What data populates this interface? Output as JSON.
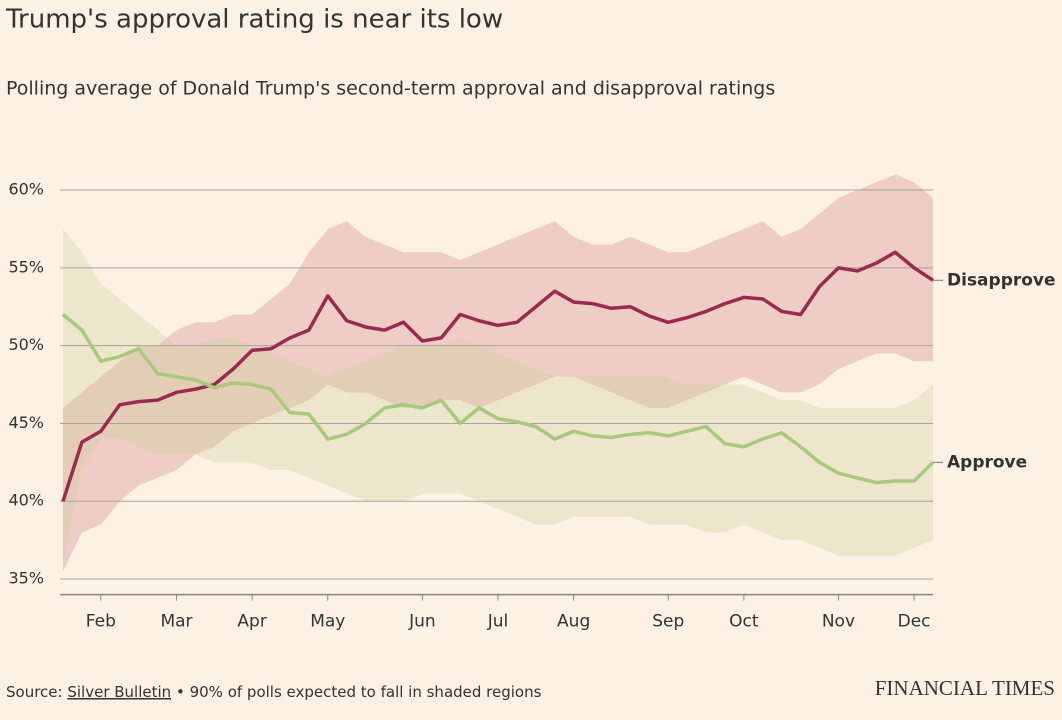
{
  "chart_data": {
    "type": "line",
    "title": "Trump's approval rating is near its low",
    "subtitle": "Polling average of Donald Trump's second-term approval and disapproval ratings",
    "categories": [
      null,
      null,
      "Feb",
      null,
      null,
      null,
      "Mar",
      null,
      null,
      null,
      "Apr",
      null,
      null,
      null,
      "May",
      null,
      null,
      null,
      null,
      "Jun",
      null,
      null,
      null,
      "Jul",
      null,
      null,
      null,
      "Aug",
      null,
      null,
      null,
      null,
      "Sep",
      null,
      null,
      null,
      "Oct",
      null,
      null,
      null,
      null,
      "Nov",
      null,
      null,
      null,
      "Dec",
      null
    ],
    "ylim": [
      34,
      61.5
    ],
    "yticks": [
      {
        "value": 35,
        "label": "35%"
      },
      {
        "value": 40,
        "label": "40%"
      },
      {
        "value": 45,
        "label": "45%"
      },
      {
        "value": 50,
        "label": "50%"
      },
      {
        "value": 55,
        "label": "55%"
      },
      {
        "value": 60,
        "label": "60%"
      }
    ],
    "grid": true,
    "series": [
      {
        "name": "Disapprove",
        "color": "#9a2a4e",
        "band_color": "rgba(204,110,120,0.28)",
        "values": [
          40,
          43.8,
          44.5,
          46.2,
          46.4,
          46.5,
          47.0,
          47.2,
          47.5,
          48.5,
          49.7,
          49.8,
          50.5,
          51.0,
          53.2,
          51.6,
          51.2,
          51.0,
          51.5,
          50.3,
          50.5,
          52.0,
          51.6,
          51.3,
          51.5,
          52.5,
          53.5,
          52.8,
          52.7,
          52.4,
          52.5,
          51.9,
          51.5,
          51.8,
          52.2,
          52.7,
          53.1,
          53.0,
          52.2,
          52.0,
          53.8,
          55.0,
          54.8,
          55.3,
          56.0,
          55.0,
          54.2
        ],
        "upper": [
          46,
          47,
          48,
          49,
          50,
          50,
          51,
          51.5,
          51.5,
          52,
          52,
          53,
          54,
          56,
          57.5,
          58,
          57,
          56.5,
          56,
          56,
          56,
          55.5,
          56,
          56.5,
          57,
          57.5,
          58,
          57,
          56.5,
          56.5,
          57,
          56.5,
          56,
          56,
          56.5,
          57,
          57.5,
          58,
          57,
          57.5,
          58.5,
          59.5,
          60,
          60.5,
          61,
          60.5,
          59.5
        ],
        "lower": [
          35.5,
          38,
          38.5,
          40,
          41,
          41.5,
          42,
          43,
          43.5,
          44.5,
          45,
          45.5,
          46,
          46.5,
          47.5,
          47,
          47,
          46.5,
          46,
          46,
          46.5,
          46.5,
          46,
          46.5,
          47,
          47.5,
          48,
          48,
          47.5,
          47,
          46.5,
          46,
          46,
          46.5,
          47,
          47.5,
          48,
          47.5,
          47,
          47,
          47.5,
          48.5,
          49,
          49.5,
          49.5,
          49,
          49
        ]
      },
      {
        "name": "Approve",
        "color": "#a7c97b",
        "band_color": "rgba(205,205,150,0.32)",
        "values": [
          52.0,
          51.0,
          49.0,
          49.3,
          49.8,
          48.2,
          48.0,
          47.8,
          47.3,
          47.6,
          47.5,
          47.2,
          45.7,
          45.6,
          44.0,
          44.3,
          45.0,
          46.0,
          46.2,
          46.0,
          46.5,
          45.0,
          46.0,
          45.3,
          45.1,
          44.8,
          44.0,
          44.5,
          44.2,
          44.1,
          44.3,
          44.4,
          44.2,
          44.5,
          44.8,
          43.7,
          43.5,
          44.0,
          44.4,
          43.5,
          42.5,
          41.8,
          41.5,
          41.2,
          41.3,
          41.3,
          42.5
        ],
        "upper": [
          57.5,
          56,
          54,
          53,
          52,
          51,
          50,
          50,
          50.5,
          50.5,
          50,
          49.5,
          49,
          48.5,
          48,
          48.5,
          49,
          49.5,
          50,
          50,
          50,
          50.5,
          50,
          49.5,
          49,
          48.5,
          48,
          48,
          48,
          48,
          48,
          48,
          48,
          47.5,
          47.5,
          47.5,
          47.5,
          47,
          46.5,
          46.5,
          46,
          46,
          46,
          46,
          46,
          46.5,
          47.5
        ],
        "lower": [
          36,
          42,
          44,
          44,
          43.5,
          43,
          43,
          43,
          42.5,
          42.5,
          42.5,
          42,
          42,
          41.5,
          41,
          40.5,
          40,
          40,
          40,
          40.5,
          40.5,
          40.5,
          40,
          39.5,
          39,
          38.5,
          38.5,
          39,
          39,
          39,
          39,
          38.5,
          38.5,
          38.5,
          38,
          38,
          38.5,
          38,
          37.5,
          37.5,
          37,
          36.5,
          36.5,
          36.5,
          36.5,
          37,
          37.5
        ]
      }
    ],
    "source_label": "Source:",
    "source_name": "Silver Bulletin",
    "note": "• 90% of polls expected to fall in shaded regions",
    "brand": "FINANCIAL TIMES"
  }
}
